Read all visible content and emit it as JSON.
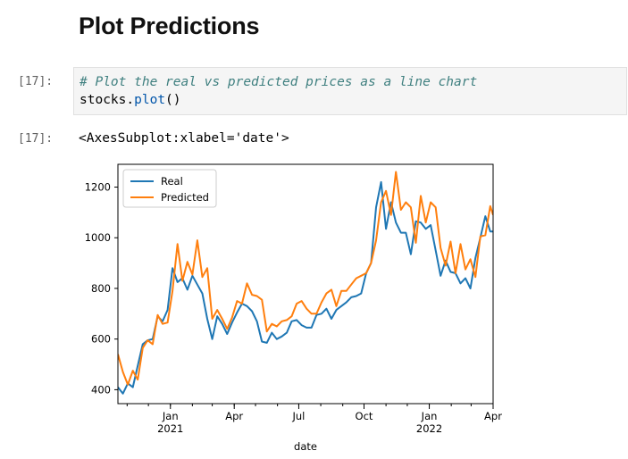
{
  "heading": "Plot Predictions",
  "input_cell": {
    "prompt": "[17]:",
    "comment": "# Plot the real vs predicted prices as a line chart",
    "code_obj": "stocks",
    "code_dot": ".",
    "code_fn": "plot",
    "code_args": "()"
  },
  "output_cell": {
    "prompt": "[17]:",
    "text": "<AxesSubplot:xlabel='date'>"
  },
  "colors": {
    "real": "#1f77b4",
    "predicted": "#ff7f0e"
  },
  "chart_data": {
    "type": "line",
    "xlabel": "date",
    "ylabel": "",
    "ylim": [
      345,
      1290
    ],
    "xlim": [
      "2020-10-19",
      "2022-04-01"
    ],
    "grid": false,
    "legend_position": "top-left",
    "y_ticks": [
      400,
      600,
      800,
      1000,
      1200
    ],
    "x_ticks": [
      {
        "date": "2021-01-01",
        "label": "Jan",
        "sublabel": "2021"
      },
      {
        "date": "2021-04-01",
        "label": "Apr",
        "sublabel": ""
      },
      {
        "date": "2021-07-01",
        "label": "Jul",
        "sublabel": ""
      },
      {
        "date": "2021-10-01",
        "label": "Oct",
        "sublabel": ""
      },
      {
        "date": "2022-01-01",
        "label": "Jan",
        "sublabel": "2022"
      },
      {
        "date": "2022-04-01",
        "label": "Apr",
        "sublabel": ""
      }
    ],
    "x": [
      "2020-10-19",
      "2020-10-26",
      "2020-11-02",
      "2020-11-09",
      "2020-11-16",
      "2020-11-23",
      "2020-11-30",
      "2020-12-07",
      "2020-12-14",
      "2020-12-21",
      "2020-12-28",
      "2021-01-04",
      "2021-01-11",
      "2021-01-18",
      "2021-01-25",
      "2021-02-01",
      "2021-02-08",
      "2021-02-15",
      "2021-02-22",
      "2021-03-01",
      "2021-03-08",
      "2021-03-15",
      "2021-03-22",
      "2021-03-29",
      "2021-04-05",
      "2021-04-12",
      "2021-04-19",
      "2021-04-26",
      "2021-05-03",
      "2021-05-10",
      "2021-05-17",
      "2021-05-24",
      "2021-05-31",
      "2021-06-07",
      "2021-06-14",
      "2021-06-21",
      "2021-06-28",
      "2021-07-05",
      "2021-07-12",
      "2021-07-19",
      "2021-07-26",
      "2021-08-02",
      "2021-08-09",
      "2021-08-16",
      "2021-08-23",
      "2021-08-30",
      "2021-09-06",
      "2021-09-13",
      "2021-09-20",
      "2021-09-27",
      "2021-10-04",
      "2021-10-11",
      "2021-10-18",
      "2021-10-25",
      "2021-11-01",
      "2021-11-08",
      "2021-11-15",
      "2021-11-22",
      "2021-11-29",
      "2021-12-06",
      "2021-12-13",
      "2021-12-20",
      "2021-12-27",
      "2022-01-03",
      "2022-01-10",
      "2022-01-17",
      "2022-01-24",
      "2022-01-31",
      "2022-02-07",
      "2022-02-14",
      "2022-02-21",
      "2022-02-28",
      "2022-03-07",
      "2022-03-14",
      "2022-03-21",
      "2022-03-28",
      "2022-04-01"
    ],
    "series": [
      {
        "name": "Real",
        "values": [
          410,
          385,
          425,
          410,
          495,
          580,
          595,
          600,
          690,
          670,
          715,
          880,
          825,
          840,
          795,
          850,
          815,
          780,
          680,
          600,
          690,
          660,
          620,
          665,
          705,
          740,
          730,
          710,
          670,
          590,
          585,
          625,
          600,
          610,
          625,
          670,
          675,
          655,
          645,
          645,
          695,
          700,
          720,
          680,
          715,
          730,
          745,
          765,
          770,
          780,
          860,
          900,
          1120,
          1220,
          1035,
          1140,
          1060,
          1020,
          1020,
          935,
          1065,
          1060,
          1035,
          1050,
          950,
          850,
          910,
          865,
          860,
          820,
          840,
          800,
          920,
          1000,
          1085,
          1025,
          1025
        ]
      },
      {
        "name": "Predicted",
        "values": [
          540,
          470,
          420,
          475,
          440,
          565,
          595,
          580,
          695,
          660,
          665,
          790,
          975,
          830,
          905,
          855,
          990,
          845,
          880,
          680,
          715,
          680,
          640,
          685,
          750,
          740,
          820,
          775,
          770,
          755,
          630,
          660,
          650,
          670,
          675,
          690,
          740,
          750,
          720,
          700,
          700,
          745,
          780,
          795,
          730,
          790,
          790,
          815,
          840,
          850,
          860,
          900,
          990,
          1140,
          1185,
          1090,
          1260,
          1110,
          1140,
          1120,
          980,
          1165,
          1060,
          1140,
          1120,
          960,
          890,
          985,
          860,
          975,
          875,
          915,
          845,
          1005,
          1010,
          1125,
          1090
        ]
      }
    ]
  }
}
